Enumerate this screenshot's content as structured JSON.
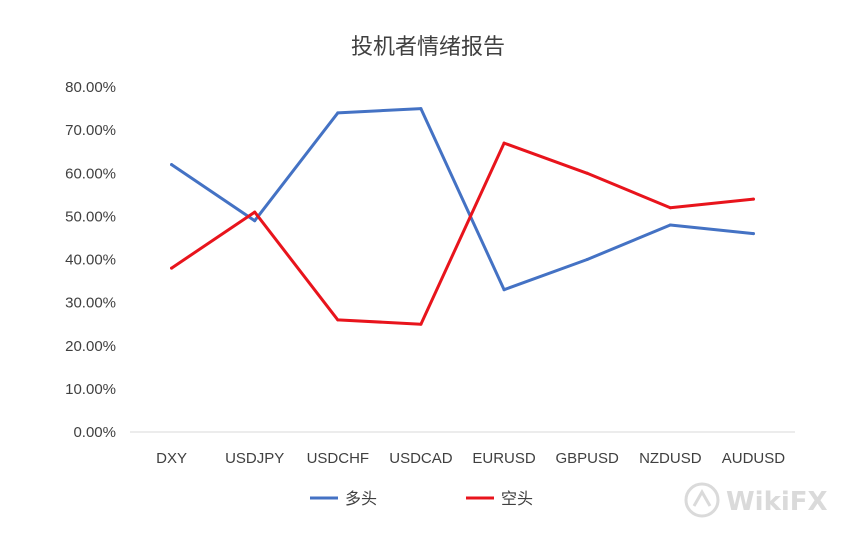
{
  "chart_data": {
    "type": "line",
    "title": "投机者情绪报告",
    "categories": [
      "DXY",
      "USDJPY",
      "USDCHF",
      "USDCAD",
      "EURUSD",
      "GBPUSD",
      "NZDUSD",
      "AUDUSD"
    ],
    "series": [
      {
        "name": "多头",
        "color": "#4472C4",
        "values": [
          0.62,
          0.49,
          0.74,
          0.75,
          0.33,
          0.4,
          0.48,
          0.46
        ]
      },
      {
        "name": "空头",
        "color": "#E8141C",
        "values": [
          0.38,
          0.51,
          0.26,
          0.25,
          0.67,
          0.6,
          0.52,
          0.54
        ]
      }
    ],
    "ylim": [
      0,
      0.8
    ],
    "yticks": [
      "0.00%",
      "10.00%",
      "20.00%",
      "30.00%",
      "40.00%",
      "50.00%",
      "60.00%",
      "70.00%",
      "80.00%"
    ],
    "grid": false,
    "legend": "bottom"
  },
  "watermark": {
    "text": "WikiFX",
    "icon": "wikifx-logo-icon"
  }
}
